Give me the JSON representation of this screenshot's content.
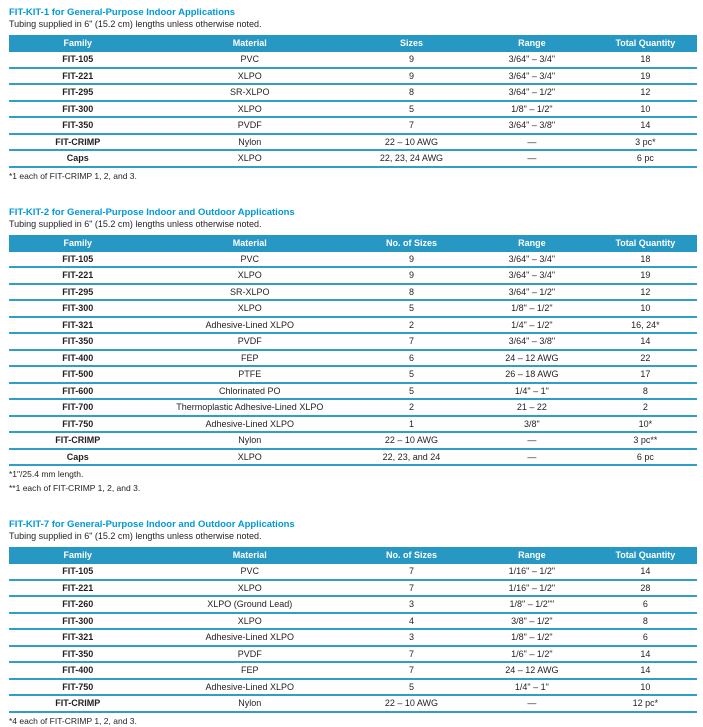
{
  "colors": {
    "accent_header": "#2798c3",
    "title_blue": "#0099d6",
    "divider": "#2f9fc9",
    "text": "#231f20"
  },
  "sections": [
    {
      "title": "FIT-KIT-1 for General-Purpose Indoor Applications",
      "subtitle": "Tubing supplied in 6\" (15.2 cm) lengths unless otherwise noted.",
      "columns": [
        "Family",
        "Material",
        "Sizes",
        "Range",
        "Total Quantity"
      ],
      "rows": [
        [
          "FIT-105",
          "PVC",
          "9",
          "3/64\" – 3/4\"",
          "18"
        ],
        [
          "FIT-221",
          "XLPO",
          "9",
          "3/64\" – 3/4\"",
          "19"
        ],
        [
          "FIT-295",
          "SR-XLPO",
          "8",
          "3/64\" – 1/2\"",
          "12"
        ],
        [
          "FIT-300",
          "XLPO",
          "5",
          "1/8\" – 1/2\"",
          "10"
        ],
        [
          "FIT-350",
          "PVDF",
          "7",
          "3/64\" – 3/8\"",
          "14"
        ],
        [
          "FIT-CRIMP",
          "Nylon",
          "22 – 10 AWG",
          "—",
          "3 pc*"
        ],
        [
          "Caps",
          "XLPO",
          "22, 23, 24 AWG",
          "—",
          "6 pc"
        ]
      ],
      "footnotes": [
        "*1 each of FIT-CRIMP 1, 2, and 3."
      ]
    },
    {
      "title": "FIT-KIT-2 for General-Purpose Indoor and Outdoor Applications",
      "subtitle": "Tubing supplied in 6\" (15.2 cm) lengths unless otherwise noted.",
      "columns": [
        "Family",
        "Material",
        "No. of Sizes",
        "Range",
        "Total Quantity"
      ],
      "rows": [
        [
          "FIT-105",
          "PVC",
          "9",
          "3/64\" – 3/4\"",
          "18"
        ],
        [
          "FIT-221",
          "XLPO",
          "9",
          "3/64\" – 3/4\"",
          "19"
        ],
        [
          "FIT-295",
          "SR-XLPO",
          "8",
          "3/64\" – 1/2\"",
          "12"
        ],
        [
          "FIT-300",
          "XLPO",
          "5",
          "1/8\" – 1/2\"",
          "10"
        ],
        [
          "FIT-321",
          "Adhesive-Lined XLPO",
          "2",
          "1/4\" – 1/2\"",
          "16, 24*"
        ],
        [
          "FIT-350",
          "PVDF",
          "7",
          "3/64\" – 3/8\"",
          "14"
        ],
        [
          "FIT-400",
          "FEP",
          "6",
          "24 – 12 AWG",
          "22"
        ],
        [
          "FIT-500",
          "PTFE",
          "5",
          "26 – 18 AWG",
          "17"
        ],
        [
          "FIT-600",
          "Chlorinated PO",
          "5",
          "1/4\" – 1\"",
          "8"
        ],
        [
          "FIT-700",
          "Thermoplastic Adhesive-Lined XLPO",
          "2",
          "21 – 22",
          "2"
        ],
        [
          "FIT-750",
          "Adhesive-Lined XLPO",
          "1",
          "3/8\"",
          "10*"
        ],
        [
          "FIT-CRIMP",
          "Nylon",
          "22 – 10 AWG",
          "—",
          "3 pc**"
        ],
        [
          "Caps",
          "XLPO",
          "22, 23, and 24",
          "—",
          "6 pc"
        ]
      ],
      "footnotes": [
        "*1\"/25.4 mm length.",
        "**1 each of FIT-CRIMP 1, 2, and 3."
      ]
    },
    {
      "title": "FIT-KIT-7 for General-Purpose Indoor and Outdoor Applications",
      "subtitle": "Tubing supplied in 6\" (15.2 cm) lengths unless otherwise noted.",
      "columns": [
        "Family",
        "Material",
        "No. of Sizes",
        "Range",
        "Total Quantity"
      ],
      "rows": [
        [
          "FIT-105",
          "PVC",
          "7",
          "1/16\" – 1/2\"",
          "14"
        ],
        [
          "FIT-221",
          "XLPO",
          "7",
          "1/16\" – 1/2\"",
          "28"
        ],
        [
          "FIT-260",
          "XLPO (Ground Lead)",
          "3",
          "1/8\" – 1/2\"\"",
          "6"
        ],
        [
          "FIT-300",
          "XLPO",
          "4",
          "3/8\" – 1/2\"",
          "8"
        ],
        [
          "FIT-321",
          "Adhesive-Lined XLPO",
          "3",
          "1/8\" – 1/2\"",
          "6"
        ],
        [
          "FIT-350",
          "PVDF",
          "7",
          "1/6\" – 1/2\"",
          "14"
        ],
        [
          "FIT-400",
          "FEP",
          "7",
          "24 – 12 AWG",
          "14"
        ],
        [
          "FIT-750",
          "Adhesive-Lined XLPO",
          "5",
          "1/4\" – 1\"",
          "10"
        ],
        [
          "FIT-CRIMP",
          "Nylon",
          "22 – 10 AWG",
          "—",
          "12 pc*"
        ]
      ],
      "footnotes": [
        "*4 each of FIT-CRIMP 1, 2, and 3."
      ]
    }
  ]
}
